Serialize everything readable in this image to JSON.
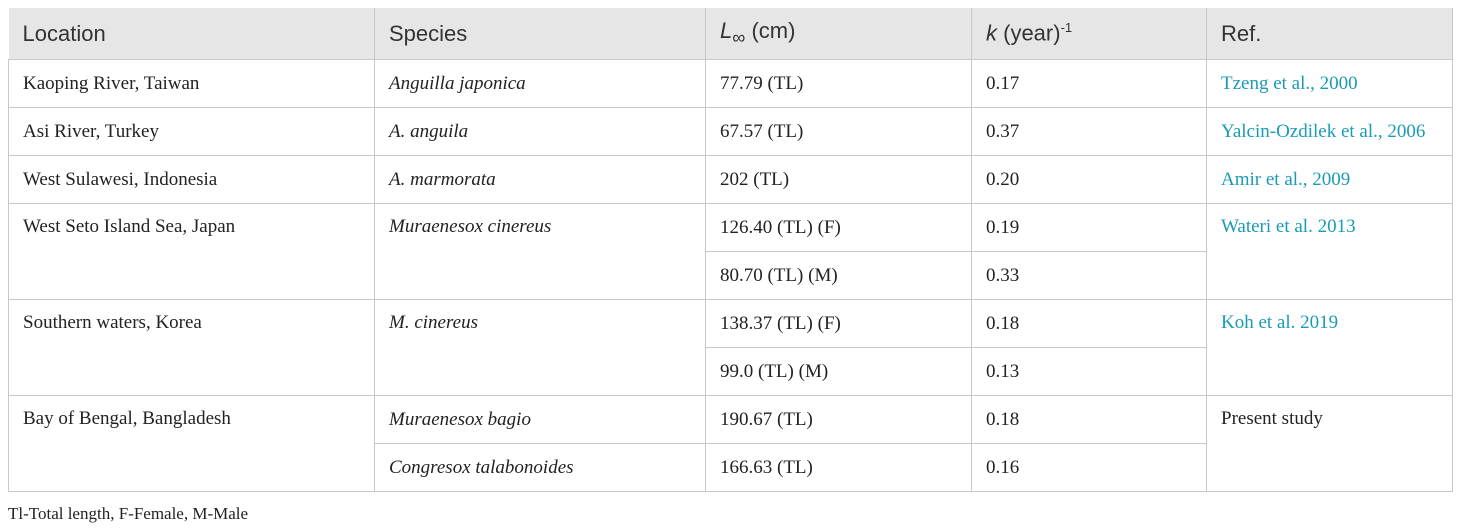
{
  "header": {
    "location": "Location",
    "species": "Species",
    "linf_symbol": "L",
    "linf_sub": "∞",
    "linf_unit": " (cm)",
    "k_symbol": "k",
    "k_unit": " (year)",
    "k_sup": "-1",
    "ref": "Ref."
  },
  "rows": [
    {
      "location": "Kaoping River, Taiwan",
      "species": "Anguilla japonica",
      "linf": "77.79 (TL)",
      "k": "0.17",
      "ref": "Tzeng et al., 2000"
    },
    {
      "location": "Asi River, Turkey",
      "species": "A. anguila",
      "linf": "67.57 (TL)",
      "k": "0.37",
      "ref": "Yalcin-Ozdilek et al., 2006"
    },
    {
      "location": "West Sulawesi, Indonesia",
      "species": "A. marmorata",
      "linf": "202 (TL)",
      "k": "0.20",
      "ref": "Amir et al., 2009"
    },
    {
      "location": "West Seto Island Sea, Japan",
      "species": "Muraenesox cinereus",
      "linf": "126.40 (TL) (F)",
      "k": "0.19",
      "ref": "Wateri et al. 2013"
    },
    {
      "linf": "80.70 (TL) (M)",
      "k": "0.33"
    },
    {
      "location": "Southern waters, Korea",
      "species": "M. cinereus",
      "linf": "138.37 (TL) (F)",
      "k": "0.18",
      "ref": "Koh et al. 2019"
    },
    {
      "linf": "99.0 (TL) (M)",
      "k": "0.13"
    },
    {
      "location": "Bay of Bengal, Bangladesh",
      "species": "Muraenesox bagio",
      "linf": "190.67 (TL)",
      "k": "0.18",
      "ref": "Present study"
    },
    {
      "species": "Congresox talabonoides",
      "linf": "166.63 (TL)",
      "k": "0.16"
    }
  ],
  "footnote": "Tl-Total length, F-Female, M-Male"
}
